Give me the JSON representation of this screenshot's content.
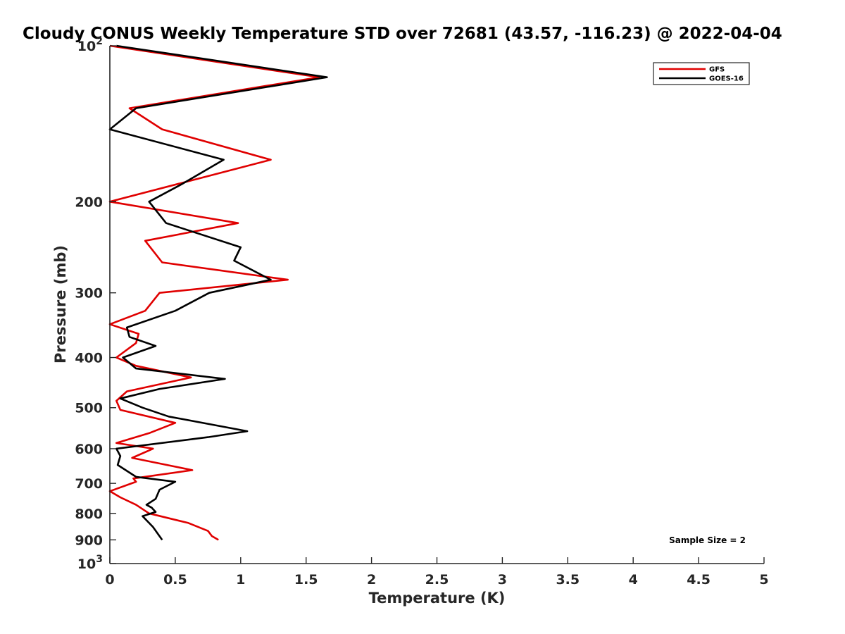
{
  "chart_data": {
    "type": "line",
    "title": "Cloudy CONUS Weekly Temperature STD over 72681 (43.57, -116.23) @ 2022-04-04",
    "xlabel": "Temperature (K)",
    "ylabel": "Pressure (mb)",
    "xlim": [
      0,
      5
    ],
    "ylim": [
      100,
      1000
    ],
    "yscale": "log",
    "y_reversed": true,
    "grid": false,
    "legend_position": "top-right",
    "x_ticks": [
      {
        "value": 0,
        "label": "0"
      },
      {
        "value": 0.5,
        "label": "0.5"
      },
      {
        "value": 1,
        "label": "1"
      },
      {
        "value": 1.5,
        "label": "1.5"
      },
      {
        "value": 2,
        "label": "2"
      },
      {
        "value": 2.5,
        "label": "2.5"
      },
      {
        "value": 3,
        "label": "3"
      },
      {
        "value": 3.5,
        "label": "3.5"
      },
      {
        "value": 4,
        "label": "4"
      },
      {
        "value": 4.5,
        "label": "4.5"
      },
      {
        "value": 5,
        "label": "5"
      }
    ],
    "y_ticks": [
      {
        "value": 100,
        "base": "10",
        "exp": "2"
      },
      {
        "value": 200,
        "label": "200"
      },
      {
        "value": 300,
        "label": "300"
      },
      {
        "value": 400,
        "label": "400"
      },
      {
        "value": 500,
        "label": "500"
      },
      {
        "value": 600,
        "label": "600"
      },
      {
        "value": 700,
        "label": "700"
      },
      {
        "value": 800,
        "label": "800"
      },
      {
        "value": 900,
        "label": "900"
      },
      {
        "value": 1000,
        "base": "10",
        "exp": "3"
      }
    ],
    "annotation": "Sample Size = 2",
    "series": [
      {
        "name": "GFS",
        "color": "#e00000",
        "points": [
          [
            0.0,
            100
          ],
          [
            1.6,
            115
          ],
          [
            0.15,
            132
          ],
          [
            0.4,
            145
          ],
          [
            1.23,
            166
          ],
          [
            0.0,
            200
          ],
          [
            0.98,
            220
          ],
          [
            0.27,
            238
          ],
          [
            0.4,
            262
          ],
          [
            1.36,
            283
          ],
          [
            0.38,
            300
          ],
          [
            0.27,
            325
          ],
          [
            0.0,
            345
          ],
          [
            0.22,
            360
          ],
          [
            0.2,
            375
          ],
          [
            0.05,
            400
          ],
          [
            0.2,
            415
          ],
          [
            0.62,
            437
          ],
          [
            0.13,
            465
          ],
          [
            0.05,
            485
          ],
          [
            0.08,
            505
          ],
          [
            0.5,
            535
          ],
          [
            0.3,
            560
          ],
          [
            0.05,
            585
          ],
          [
            0.33,
            600
          ],
          [
            0.17,
            625
          ],
          [
            0.63,
            660
          ],
          [
            0.18,
            685
          ],
          [
            0.2,
            695
          ],
          [
            0.0,
            725
          ],
          [
            0.08,
            745
          ],
          [
            0.2,
            770
          ],
          [
            0.3,
            800
          ],
          [
            0.6,
            835
          ],
          [
            0.75,
            865
          ],
          [
            0.78,
            885
          ],
          [
            0.83,
            900
          ]
        ]
      },
      {
        "name": "GOES-16",
        "color": "#000000",
        "points": [
          [
            0.05,
            100
          ],
          [
            1.66,
            115
          ],
          [
            0.2,
            132
          ],
          [
            0.0,
            145
          ],
          [
            0.87,
            166
          ],
          [
            0.55,
            185
          ],
          [
            0.3,
            200
          ],
          [
            0.43,
            220
          ],
          [
            1.0,
            245
          ],
          [
            0.95,
            260
          ],
          [
            1.23,
            283
          ],
          [
            0.76,
            300
          ],
          [
            0.5,
            325
          ],
          [
            0.13,
            350
          ],
          [
            0.15,
            365
          ],
          [
            0.35,
            380
          ],
          [
            0.1,
            400
          ],
          [
            0.2,
            420
          ],
          [
            0.88,
            440
          ],
          [
            0.38,
            460
          ],
          [
            0.08,
            480
          ],
          [
            0.25,
            500
          ],
          [
            0.45,
            520
          ],
          [
            1.05,
            555
          ],
          [
            0.75,
            570
          ],
          [
            0.05,
            600
          ],
          [
            0.08,
            620
          ],
          [
            0.06,
            645
          ],
          [
            0.2,
            680
          ],
          [
            0.5,
            695
          ],
          [
            0.38,
            720
          ],
          [
            0.35,
            750
          ],
          [
            0.28,
            770
          ],
          [
            0.32,
            780
          ],
          [
            0.35,
            795
          ],
          [
            0.25,
            810
          ],
          [
            0.33,
            850
          ],
          [
            0.4,
            900
          ]
        ]
      }
    ]
  }
}
